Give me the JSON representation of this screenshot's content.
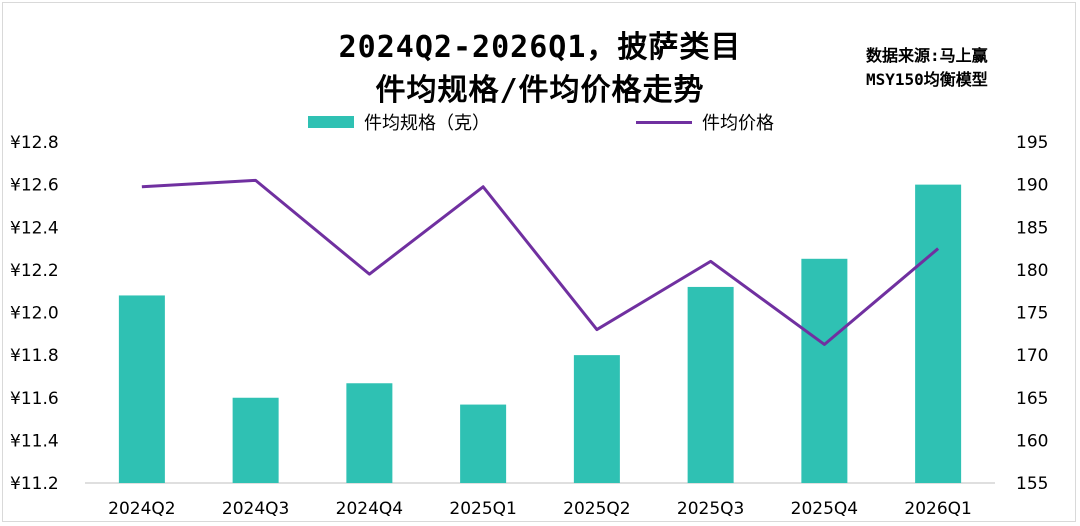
{
  "title_line1": "2024Q2-2026Q1，披萨类目",
  "title_line2": "件均规格/件均价格走势",
  "source_line1": "数据来源:马上赢",
  "source_line2": "MSY150均衡模型",
  "colors": {
    "bar": "#2fc1b3",
    "line": "#7030a0"
  },
  "chart_data": {
    "type": "bar+line",
    "categories": [
      "2024Q2",
      "2024Q3",
      "2024Q4",
      "2025Q1",
      "2025Q2",
      "2025Q3",
      "2025Q4",
      "2026Q1"
    ],
    "series": [
      {
        "name": "件均规格（克）",
        "type": "bar",
        "axis": "right",
        "values": [
          177,
          165,
          166.7,
          164.2,
          170,
          178,
          181.3,
          190
        ]
      },
      {
        "name": "件均价格",
        "type": "line",
        "axis": "left",
        "values": [
          12.59,
          12.62,
          12.18,
          12.59,
          11.92,
          12.24,
          11.85,
          12.3
        ]
      }
    ],
    "left_axis": {
      "min": 11.2,
      "max": 12.8,
      "step": 0.2,
      "tick_labels": [
        "¥11.2",
        "¥11.4",
        "¥11.6",
        "¥11.8",
        "¥12.0",
        "¥12.2",
        "¥12.4",
        "¥12.6",
        "¥12.8"
      ]
    },
    "right_axis": {
      "min": 155,
      "max": 195,
      "step": 5,
      "tick_labels": [
        "155",
        "160",
        "165",
        "170",
        "175",
        "180",
        "185",
        "190",
        "195"
      ]
    },
    "grid": false,
    "legend": "top-center"
  }
}
